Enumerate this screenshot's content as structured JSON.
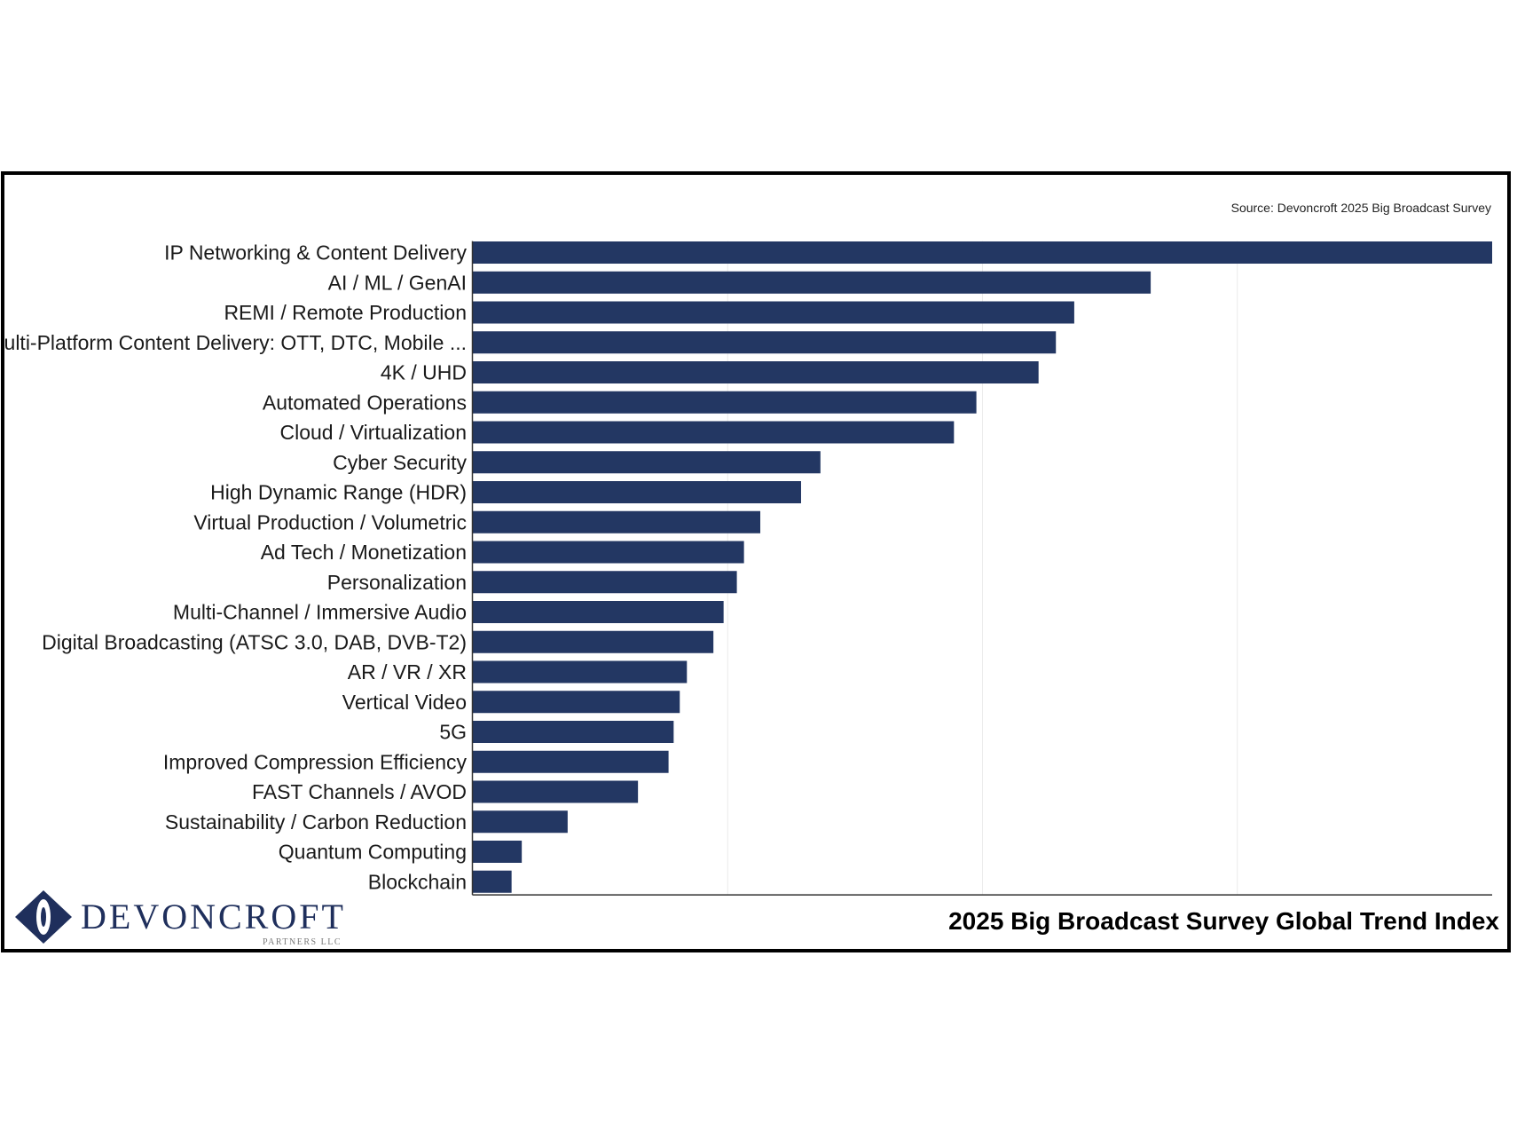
{
  "source": "Source: Devoncroft  2025 Big Broadcast Survey",
  "footer_title": "2025 Big Broadcast Survey Global Trend Index",
  "logo": {
    "name": "DEVONCROFT",
    "sub": "PARTNERS LLC"
  },
  "colors": {
    "bar": "#233763",
    "logo": "#1f2f5c"
  },
  "chart_data": {
    "type": "bar",
    "orientation": "horizontal",
    "title": "2025 Big Broadcast Survey Global Trend Index",
    "xlabel": "",
    "ylabel": "",
    "xlim": [
      0,
      100
    ],
    "grid": true,
    "legend": "none",
    "categories": [
      "IP Networking & Content Delivery",
      "AI / ML / GenAI",
      "REMI / Remote Production",
      "Multi-Platform Content Delivery: OTT, DTC, Mobile ...",
      "4K / UHD",
      "Automated Operations",
      "Cloud / Virtualization",
      "Cyber Security",
      "High Dynamic Range (HDR)",
      "Virtual Production / Volumetric",
      "Ad Tech / Monetization",
      "Personalization",
      "Multi-Channel / Immersive Audio",
      "Digital Broadcasting (ATSC 3.0, DAB, DVB-T2)",
      "AR / VR / XR",
      "Vertical Video",
      "5G",
      "Improved Compression Efficiency",
      "FAST Channels / AVOD",
      "Sustainability / Carbon Reduction",
      "Quantum Computing",
      "Blockchain"
    ],
    "values": [
      100,
      66.5,
      59,
      57.2,
      55.5,
      49.4,
      47.2,
      34.1,
      32.2,
      28.2,
      26.6,
      25.9,
      24.6,
      23.6,
      21,
      20.3,
      19.7,
      19.2,
      16.2,
      9.3,
      4.8,
      3.8
    ]
  }
}
